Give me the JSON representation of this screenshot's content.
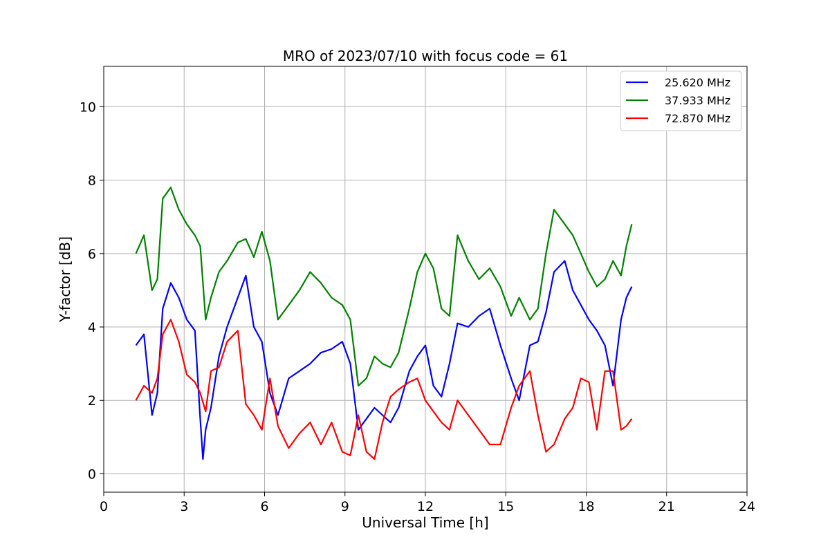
{
  "chart_data": {
    "type": "line",
    "title": "MRO of 2023/07/10 with focus code = 61",
    "xlabel": "Universal Time [h]",
    "ylabel": "Y-factor [dB]",
    "xlim": [
      0,
      24
    ],
    "ylim": [
      -0.5,
      11.1
    ],
    "xticks": [
      0,
      3,
      6,
      9,
      12,
      15,
      18,
      21,
      24
    ],
    "yticks": [
      0,
      2,
      4,
      6,
      8,
      10
    ],
    "grid": true,
    "legend_position": "top-right",
    "series": [
      {
        "name": "25.620 MHz",
        "color": "#0000ff",
        "x": [
          1.2,
          1.5,
          1.8,
          2.0,
          2.2,
          2.5,
          2.8,
          3.1,
          3.4,
          3.6,
          3.7,
          3.8,
          4.0,
          4.3,
          4.6,
          5.0,
          5.3,
          5.6,
          5.9,
          6.2,
          6.5,
          6.9,
          7.3,
          7.7,
          8.1,
          8.5,
          8.9,
          9.2,
          9.5,
          9.8,
          10.1,
          10.4,
          10.7,
          11.0,
          11.4,
          11.7,
          12.0,
          12.3,
          12.6,
          12.9,
          13.2,
          13.6,
          14.0,
          14.4,
          14.8,
          15.2,
          15.5,
          15.9,
          16.2,
          16.5,
          16.8,
          17.2,
          17.5,
          17.8,
          18.1,
          18.4,
          18.7,
          19.0,
          19.3,
          19.5,
          19.7
        ],
        "y": [
          3.5,
          3.8,
          1.6,
          2.2,
          4.5,
          5.2,
          4.8,
          4.2,
          3.9,
          1.5,
          0.4,
          1.2,
          1.8,
          3.2,
          4.0,
          4.8,
          5.4,
          4.0,
          3.6,
          2.2,
          1.6,
          2.6,
          2.8,
          3.0,
          3.3,
          3.4,
          3.6,
          3.0,
          1.2,
          1.5,
          1.8,
          1.6,
          1.4,
          1.8,
          2.8,
          3.2,
          3.5,
          2.4,
          2.1,
          3.0,
          4.1,
          4.0,
          4.3,
          4.5,
          3.5,
          2.6,
          2.0,
          3.5,
          3.6,
          4.4,
          5.5,
          5.8,
          5.0,
          4.6,
          4.2,
          3.9,
          3.5,
          2.4,
          4.2,
          4.8,
          5.1
        ]
      },
      {
        "name": "37.933 MHz",
        "color": "#008000",
        "x": [
          1.2,
          1.5,
          1.8,
          2.0,
          2.2,
          2.5,
          2.8,
          3.1,
          3.4,
          3.6,
          3.8,
          4.0,
          4.3,
          4.6,
          5.0,
          5.3,
          5.6,
          5.9,
          6.2,
          6.5,
          6.9,
          7.3,
          7.7,
          8.1,
          8.5,
          8.9,
          9.2,
          9.5,
          9.8,
          10.1,
          10.4,
          10.7,
          11.0,
          11.4,
          11.7,
          12.0,
          12.3,
          12.6,
          12.9,
          13.2,
          13.6,
          14.0,
          14.4,
          14.8,
          15.2,
          15.5,
          15.9,
          16.2,
          16.5,
          16.8,
          17.2,
          17.5,
          17.8,
          18.1,
          18.4,
          18.7,
          19.0,
          19.3,
          19.5,
          19.7
        ],
        "y": [
          6.0,
          6.5,
          5.0,
          5.3,
          7.5,
          7.8,
          7.2,
          6.8,
          6.5,
          6.2,
          4.2,
          4.8,
          5.5,
          5.8,
          6.3,
          6.4,
          5.9,
          6.6,
          5.8,
          4.2,
          4.6,
          5.0,
          5.5,
          5.2,
          4.8,
          4.6,
          4.2,
          2.4,
          2.6,
          3.2,
          3.0,
          2.9,
          3.3,
          4.5,
          5.5,
          6.0,
          5.6,
          4.5,
          4.3,
          6.5,
          5.8,
          5.3,
          5.6,
          5.1,
          4.3,
          4.8,
          4.2,
          4.5,
          6.0,
          7.2,
          6.8,
          6.5,
          6.0,
          5.5,
          5.1,
          5.3,
          5.8,
          5.4,
          6.2,
          6.8
        ]
      },
      {
        "name": "72.870 MHz",
        "color": "#ff0000",
        "x": [
          1.2,
          1.5,
          1.8,
          2.0,
          2.2,
          2.5,
          2.8,
          3.1,
          3.4,
          3.6,
          3.8,
          4.0,
          4.3,
          4.6,
          5.0,
          5.3,
          5.6,
          5.9,
          6.2,
          6.5,
          6.9,
          7.3,
          7.7,
          8.1,
          8.5,
          8.9,
          9.2,
          9.5,
          9.8,
          10.1,
          10.4,
          10.7,
          11.0,
          11.4,
          11.7,
          12.0,
          12.3,
          12.6,
          12.9,
          13.2,
          13.6,
          14.0,
          14.4,
          14.8,
          15.2,
          15.5,
          15.9,
          16.2,
          16.5,
          16.8,
          17.2,
          17.5,
          17.8,
          18.1,
          18.4,
          18.7,
          19.0,
          19.3,
          19.5,
          19.7
        ],
        "y": [
          2.0,
          2.4,
          2.2,
          2.6,
          3.8,
          4.2,
          3.6,
          2.7,
          2.5,
          2.2,
          1.7,
          2.8,
          2.9,
          3.6,
          3.9,
          1.9,
          1.6,
          1.2,
          2.6,
          1.3,
          0.7,
          1.1,
          1.4,
          0.8,
          1.4,
          0.6,
          0.5,
          1.6,
          0.6,
          0.4,
          1.4,
          2.1,
          2.3,
          2.5,
          2.6,
          2.0,
          1.7,
          1.4,
          1.2,
          2.0,
          1.6,
          1.2,
          0.8,
          0.8,
          1.8,
          2.4,
          2.8,
          1.6,
          0.6,
          0.8,
          1.5,
          1.8,
          2.6,
          2.5,
          1.2,
          2.8,
          2.8,
          1.2,
          1.3,
          1.5
        ]
      }
    ]
  }
}
